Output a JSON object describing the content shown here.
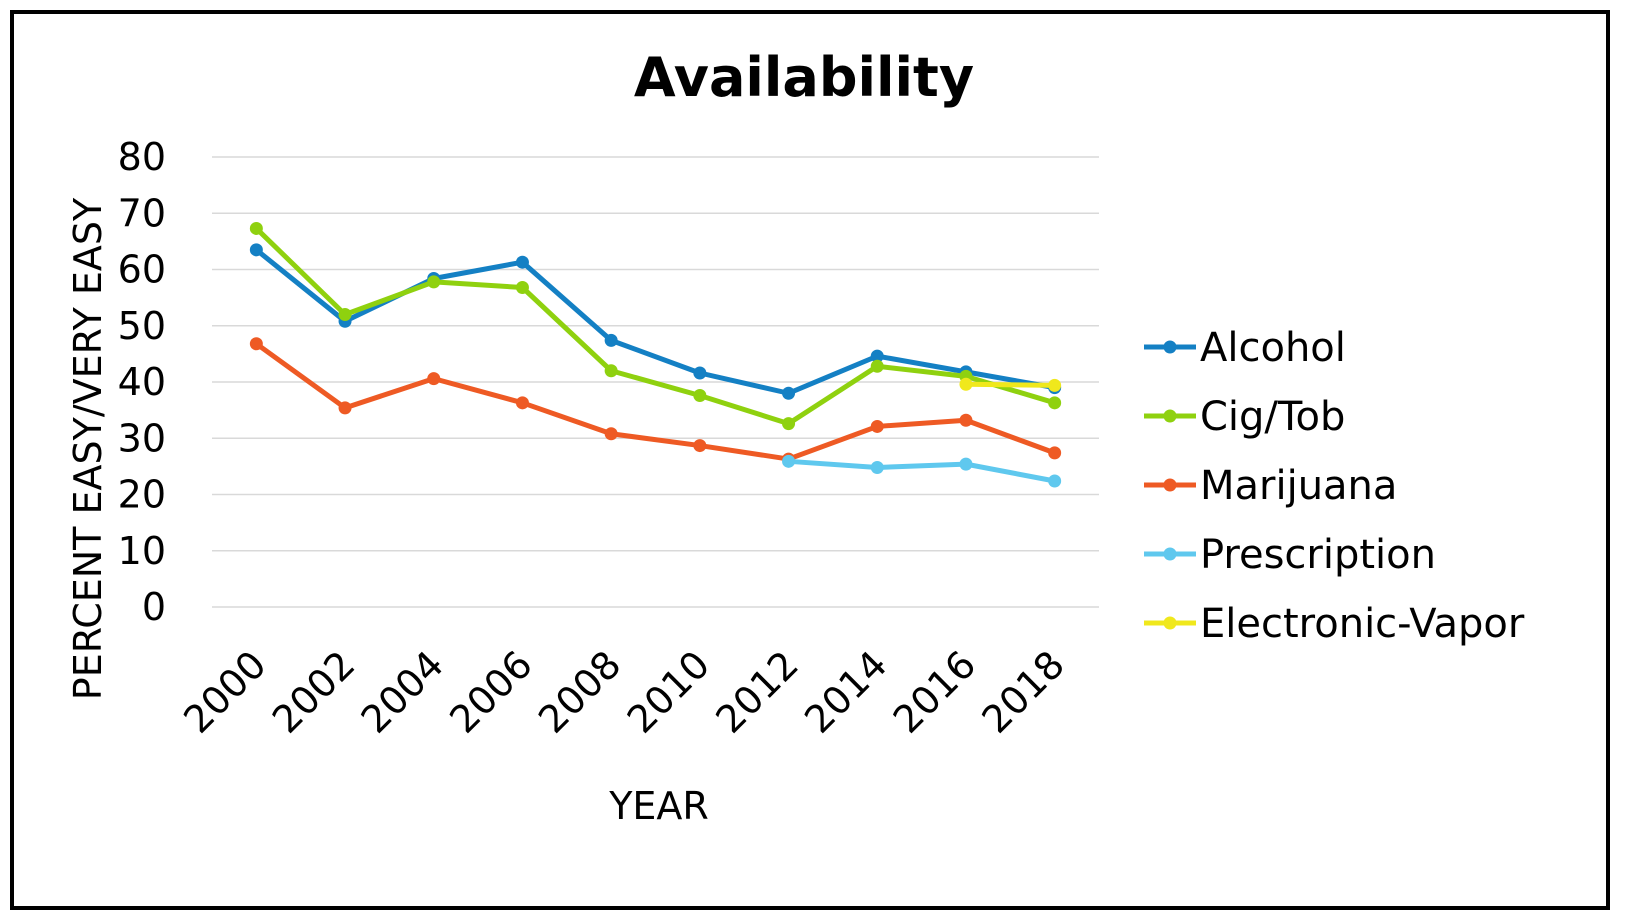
{
  "chart_data": {
    "type": "line",
    "title": "Availability",
    "xlabel": "YEAR",
    "ylabel": "PERCENT EASY/VERY EASY",
    "ylim": [
      0,
      80
    ],
    "yticks": [
      "0",
      "10",
      "20",
      "30",
      "40",
      "50",
      "60",
      "70",
      "80"
    ],
    "categories": [
      "2000",
      "2002",
      "2004",
      "2006",
      "2008",
      "2010",
      "2012",
      "2014",
      "2016",
      "2018"
    ],
    "grid": true,
    "legend_position": "right",
    "series": [
      {
        "name": "Alcohol",
        "color": "#1480c4",
        "values": [
          63.5,
          50.8,
          58.4,
          61.3,
          47.4,
          41.6,
          38.0,
          44.6,
          41.8,
          39.0
        ]
      },
      {
        "name": "Cig/Tob",
        "color": "#8fd10f",
        "values": [
          67.3,
          52.0,
          57.8,
          56.8,
          42.0,
          37.6,
          32.6,
          42.8,
          41.0,
          36.3
        ]
      },
      {
        "name": "Marijuana",
        "color": "#ee5a24",
        "values": [
          46.8,
          35.4,
          40.6,
          36.3,
          30.8,
          28.7,
          26.3,
          32.1,
          33.2,
          27.4
        ]
      },
      {
        "name": "Prescription",
        "color": "#5fc8ee",
        "values": [
          null,
          null,
          null,
          null,
          null,
          null,
          25.9,
          24.8,
          25.4,
          22.4
        ]
      },
      {
        "name": "Electronic-Vapor",
        "color": "#f0e81c",
        "values": [
          null,
          null,
          null,
          null,
          null,
          null,
          null,
          null,
          39.6,
          39.4
        ]
      }
    ]
  }
}
